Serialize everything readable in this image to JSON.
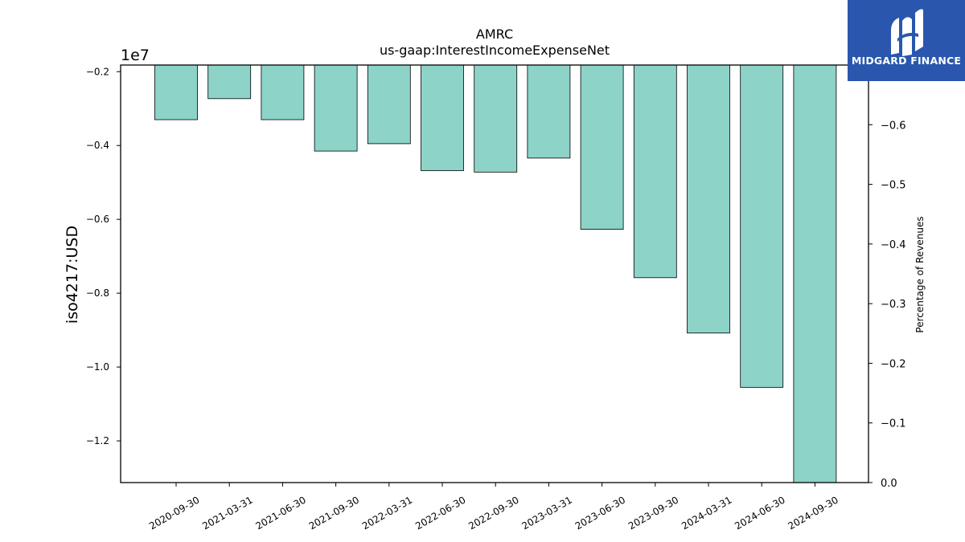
{
  "chart_data": {
    "type": "bar",
    "title": "AMRC",
    "subtitle": "us-gaap:InterestIncomeExpenseNet",
    "ylabel": "iso4217:USD",
    "y2label": "Percentage of Revenues",
    "offset_label": "1e7",
    "categories": [
      "2020-09-30",
      "2021-03-31",
      "2021-06-30",
      "2021-09-30",
      "2022-03-31",
      "2022-06-30",
      "2022-09-30",
      "2023-03-31",
      "2023-06-30",
      "2023-09-30",
      "2024-03-31",
      "2024-06-30",
      "2024-09-30"
    ],
    "values": [
      -3300000,
      -2730000,
      -3300000,
      -4150000,
      -3950000,
      -4680000,
      -4720000,
      -4340000,
      -6270000,
      -7580000,
      -9080000,
      -10550000,
      -13130000
    ],
    "ylim": [
      -13130000,
      -1820000
    ],
    "yticks": [
      -2000000,
      -4000000,
      -6000000,
      -8000000,
      -10000000,
      -12000000
    ],
    "ytick_labels": [
      "−0.2",
      "−0.4",
      "−0.6",
      "−0.8",
      "−1.0",
      "−1.2"
    ],
    "y2lim": [
      0,
      -0.7
    ],
    "y2ticks": [
      -0.6,
      -0.5,
      -0.4,
      -0.3,
      -0.2,
      -0.1,
      0.0
    ],
    "y2tick_labels": [
      "−0.6",
      "−0.5",
      "−0.4",
      "−0.3",
      "−0.2",
      "−0.1",
      "0.0"
    ],
    "bar_color": "#8dd3c7",
    "grid": false
  },
  "logo": {
    "text": "MIDGARD FINANCE",
    "color": "#2a57ad"
  }
}
